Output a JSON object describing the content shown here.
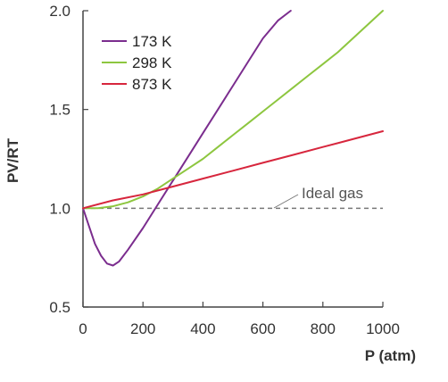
{
  "chart_data": {
    "type": "line",
    "title": "",
    "xlabel": "P (atm)",
    "ylabel": "PV/RT",
    "xlim": [
      0,
      1000
    ],
    "ylim": [
      0.5,
      2.0
    ],
    "xticks": [
      0,
      200,
      400,
      600,
      800,
      1000
    ],
    "yticks": [
      0.5,
      1.0,
      1.5,
      2.0
    ],
    "xtick_labels": [
      "0",
      "200",
      "400",
      "600",
      "800",
      "1000"
    ],
    "ytick_labels": [
      "0.5",
      "1.0",
      "1.5",
      "2.0"
    ],
    "grid": false,
    "legend": {
      "position": "top-left",
      "entries": [
        "173 K",
        "298 K",
        "873 K"
      ]
    },
    "series": [
      {
        "name": "173 K",
        "color": "#7b2d8e",
        "x": [
          0,
          20,
          40,
          60,
          80,
          100,
          120,
          150,
          200,
          250,
          300,
          350,
          400,
          450,
          500,
          550,
          600,
          650,
          693
        ],
        "y": [
          1.0,
          0.91,
          0.82,
          0.76,
          0.72,
          0.71,
          0.73,
          0.79,
          0.9,
          1.02,
          1.14,
          1.26,
          1.38,
          1.5,
          1.62,
          1.74,
          1.86,
          1.95,
          2.0
        ]
      },
      {
        "name": "298 K",
        "color": "#8dc63f",
        "x": [
          0,
          50,
          100,
          150,
          200,
          250,
          300,
          350,
          400,
          450,
          500,
          550,
          600,
          650,
          700,
          750,
          800,
          850,
          900,
          950,
          1000
        ],
        "y": [
          1.0,
          1.0,
          1.01,
          1.03,
          1.06,
          1.1,
          1.15,
          1.2,
          1.25,
          1.31,
          1.37,
          1.43,
          1.49,
          1.55,
          1.61,
          1.67,
          1.73,
          1.79,
          1.86,
          1.93,
          2.0
        ]
      },
      {
        "name": "873 K",
        "color": "#d7263d",
        "x": [
          0,
          100,
          200,
          300,
          400,
          500,
          600,
          700,
          800,
          900,
          1000
        ],
        "y": [
          1.0,
          1.04,
          1.07,
          1.11,
          1.15,
          1.19,
          1.23,
          1.27,
          1.31,
          1.35,
          1.39
        ]
      }
    ],
    "reference_line": {
      "y": 1.0,
      "label": "Ideal gas",
      "style": "dashed",
      "color": "#777777"
    }
  }
}
